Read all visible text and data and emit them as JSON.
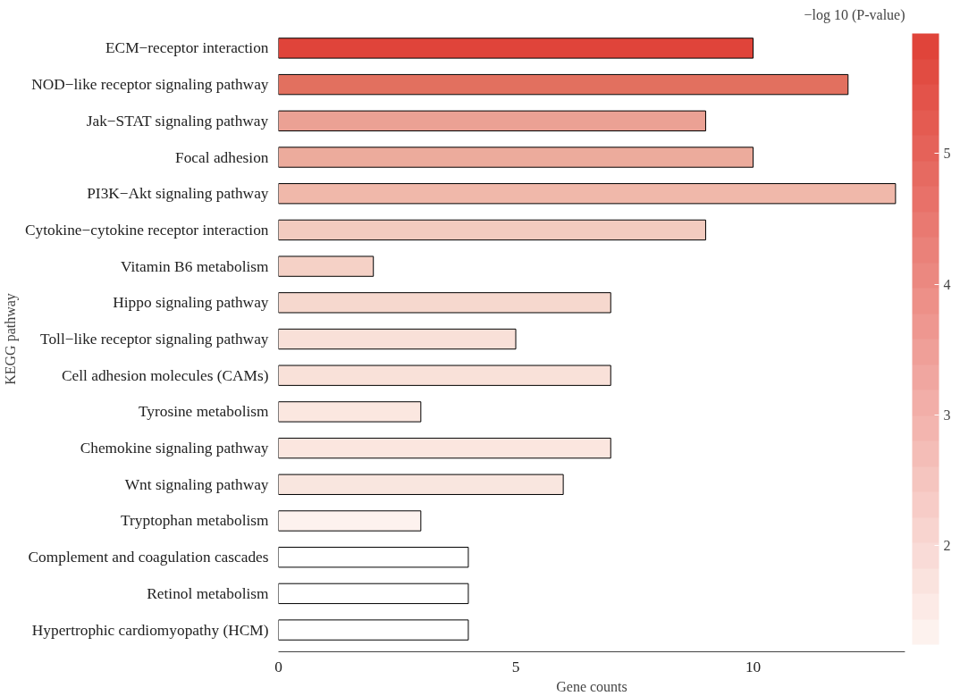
{
  "chart_data": {
    "type": "bar",
    "orientation": "horizontal",
    "xlabel": "Gene counts",
    "ylabel": "KEGG pathway",
    "clabel": "−log 10 (P-value)",
    "categories": [
      "ECM−receptor interaction",
      "NOD−like receptor signaling pathway",
      "Jak−STAT signaling pathway",
      "Focal adhesion",
      "PI3K−Akt signaling pathway",
      "Cytokine−cytokine receptor interaction",
      "Vitamin B6 metabolism",
      "Hippo signaling pathway",
      "Toll−like receptor signaling pathway",
      "Cell adhesion molecules (CAMs)",
      "Tyrosine metabolism",
      "Chemokine signaling pathway",
      "Wnt signaling pathway",
      "Tryptophan metabolism",
      "Complement and coagulation cascades",
      "Retinol metabolism",
      "Hypertrophic cardiomyopathy (HCM)"
    ],
    "values": [
      10,
      12,
      9,
      10,
      13,
      9,
      2,
      7,
      5,
      7,
      3,
      7,
      6,
      3,
      4,
      4,
      4
    ],
    "colors": [
      "#e0443a",
      "#e2705f",
      "#eba194",
      "#ecab9c",
      "#f0b8aa",
      "#f3cbbf",
      "#f5d1c6",
      "#f6d8ce",
      "#f9e0d8",
      "#f9e1d9",
      "#fbe7e0",
      "#fbe6df",
      "#f9e6df",
      "#fdf2ee",
      "#ffffff",
      "#ffffff",
      "#ffffff"
    ],
    "xlim": [
      0,
      13.2
    ],
    "xticks": [
      0,
      5,
      10
    ],
    "clim": [
      1.24,
      5.92
    ],
    "cticks": [
      2,
      3,
      4,
      5
    ],
    "grid": false
  }
}
